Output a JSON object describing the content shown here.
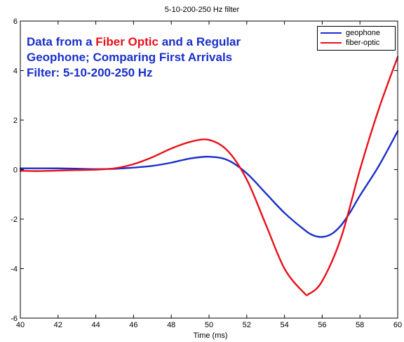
{
  "chart_data": {
    "type": "line",
    "title": "5-10-200-250 Hz filter",
    "xlabel": "Time (ms)",
    "ylabel": "",
    "xlim": [
      40,
      60
    ],
    "ylim": [
      -6,
      6
    ],
    "xticks": [
      40,
      42,
      44,
      46,
      48,
      50,
      52,
      54,
      56,
      58,
      60
    ],
    "yticks": [
      -6,
      -4,
      -2,
      0,
      2,
      4,
      6
    ],
    "legend_position": "top-right",
    "annotation": {
      "line1_a": "Data from a ",
      "line1_b": "Fiber Optic",
      "line1_c": " and a Regular",
      "line2": "Geophone; Comparing First Arrivals",
      "line3": "Filter: 5-10-200-250 Hz"
    },
    "series": [
      {
        "name": "geophone",
        "color": "#1a2fc9",
        "points": [
          [
            40,
            0.05
          ],
          [
            42,
            0.05
          ],
          [
            44,
            0.02
          ],
          [
            45,
            0.03
          ],
          [
            46,
            0.08
          ],
          [
            47,
            0.15
          ],
          [
            48,
            0.28
          ],
          [
            49,
            0.45
          ],
          [
            50,
            0.52
          ],
          [
            51,
            0.38
          ],
          [
            52,
            -0.15
          ],
          [
            53,
            -0.95
          ],
          [
            54,
            -1.75
          ],
          [
            55,
            -2.4
          ],
          [
            55.5,
            -2.65
          ],
          [
            56,
            -2.72
          ],
          [
            56.5,
            -2.6
          ],
          [
            57,
            -2.25
          ],
          [
            57.5,
            -1.7
          ],
          [
            58,
            -1.05
          ],
          [
            59,
            0.15
          ],
          [
            60,
            1.55
          ]
        ]
      },
      {
        "name": "fiber-optic",
        "color": "#e8101a",
        "points": [
          [
            40,
            -0.05
          ],
          [
            41,
            -0.06
          ],
          [
            42,
            -0.04
          ],
          [
            43,
            -0.02
          ],
          [
            44,
            0.0
          ],
          [
            45,
            0.05
          ],
          [
            46,
            0.22
          ],
          [
            47,
            0.5
          ],
          [
            48,
            0.85
          ],
          [
            49,
            1.12
          ],
          [
            50,
            1.2
          ],
          [
            51,
            0.75
          ],
          [
            52,
            -0.4
          ],
          [
            53,
            -2.2
          ],
          [
            54,
            -4.0
          ],
          [
            55,
            -4.95
          ],
          [
            55.3,
            -5.02
          ],
          [
            56,
            -4.5
          ],
          [
            57,
            -2.75
          ],
          [
            58,
            0.0
          ],
          [
            59,
            2.45
          ],
          [
            60,
            4.55
          ]
        ]
      }
    ]
  }
}
